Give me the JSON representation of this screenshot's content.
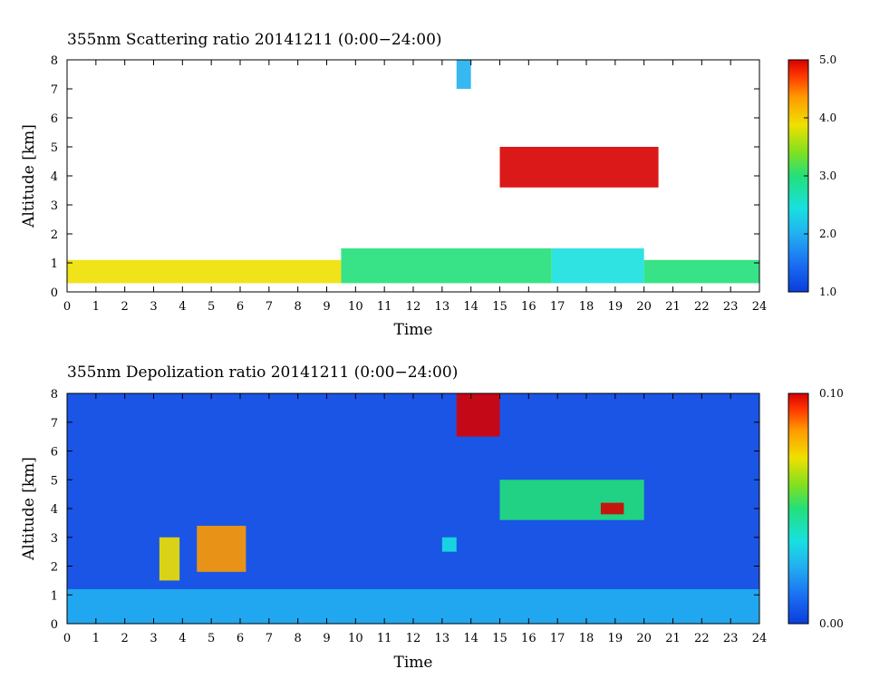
{
  "chart_data": [
    {
      "type": "heatmap",
      "title": "355nm Scattering ratio  20141211 (0:00−24:00)",
      "xlabel": "Time",
      "ylabel": "Altitude [km]",
      "xlim": [
        0,
        24
      ],
      "ylim": [
        0,
        8
      ],
      "x_ticks": [
        "0",
        "1",
        "2",
        "3",
        "4",
        "5",
        "6",
        "7",
        "8",
        "9",
        "10",
        "11",
        "12",
        "13",
        "14",
        "15",
        "16",
        "17",
        "18",
        "19",
        "20",
        "21",
        "22",
        "23",
        "24"
      ],
      "y_ticks": [
        "0",
        "1",
        "2",
        "3",
        "4",
        "5",
        "6",
        "7",
        "8"
      ],
      "colorbar": {
        "range": [
          1.0,
          5.0
        ],
        "tick_labels": [
          "1.0",
          "2.0",
          "3.0",
          "4.0",
          "5.0"
        ]
      },
      "features": [
        {
          "time": [
            0,
            9.5
          ],
          "altitude": [
            0.3,
            1.1
          ],
          "value": 3.5
        },
        {
          "time": [
            9.5,
            16.8
          ],
          "altitude": [
            0.3,
            1.5
          ],
          "value": 2.8
        },
        {
          "time": [
            16.8,
            20
          ],
          "altitude": [
            0.3,
            1.5
          ],
          "value": 2.5
        },
        {
          "time": [
            20,
            24
          ],
          "altitude": [
            0.3,
            1.1
          ],
          "value": 2.8
        },
        {
          "time": [
            15,
            20.5
          ],
          "altitude": [
            3.6,
            5.0
          ],
          "value": 5.0
        },
        {
          "time": [
            13.5,
            14
          ],
          "altitude": [
            7.0,
            8.0
          ],
          "value": 2.0
        }
      ]
    },
    {
      "type": "heatmap",
      "title": "355nm Depolization ratio  20141211 (0:00−24:00)",
      "xlabel": "Time",
      "ylabel": "Altitude [km]",
      "xlim": [
        0,
        24
      ],
      "ylim": [
        0,
        8
      ],
      "x_ticks": [
        "0",
        "1",
        "2",
        "3",
        "4",
        "5",
        "6",
        "7",
        "8",
        "9",
        "10",
        "11",
        "12",
        "13",
        "14",
        "15",
        "16",
        "17",
        "18",
        "19",
        "20",
        "21",
        "22",
        "23",
        "24"
      ],
      "y_ticks": [
        "0",
        "1",
        "2",
        "3",
        "4",
        "5",
        "6",
        "7",
        "8"
      ],
      "colorbar": {
        "range": [
          0.0,
          0.1
        ],
        "tick_labels": [
          "0.00",
          "0.10"
        ]
      },
      "features": [
        {
          "time": [
            0,
            24
          ],
          "altitude": [
            0,
            1.2
          ],
          "value": 0.025
        },
        {
          "time": [
            3.2,
            3.9
          ],
          "altitude": [
            1.5,
            3.0
          ],
          "value": 0.06
        },
        {
          "time": [
            4.5,
            6.2
          ],
          "altitude": [
            1.8,
            3.4
          ],
          "value": 0.07
        },
        {
          "time": [
            13,
            13.5
          ],
          "altitude": [
            2.5,
            3.0
          ],
          "value": 0.04
        },
        {
          "time": [
            13.5,
            15
          ],
          "altitude": [
            6.5,
            8.0
          ],
          "value": 0.09
        },
        {
          "time": [
            15,
            20
          ],
          "altitude": [
            3.6,
            5.0
          ],
          "value": 0.045
        },
        {
          "time": [
            18.5,
            19.3
          ],
          "altitude": [
            3.8,
            4.2
          ],
          "value": 0.1
        }
      ]
    }
  ],
  "colors": {
    "colormap": [
      "#0a3ddb",
      "#1b6ef2",
      "#22b0f0",
      "#18e0e0",
      "#22e07a",
      "#7fe020",
      "#f0e000",
      "#ff9a00",
      "#ff3800",
      "#d80000"
    ]
  }
}
